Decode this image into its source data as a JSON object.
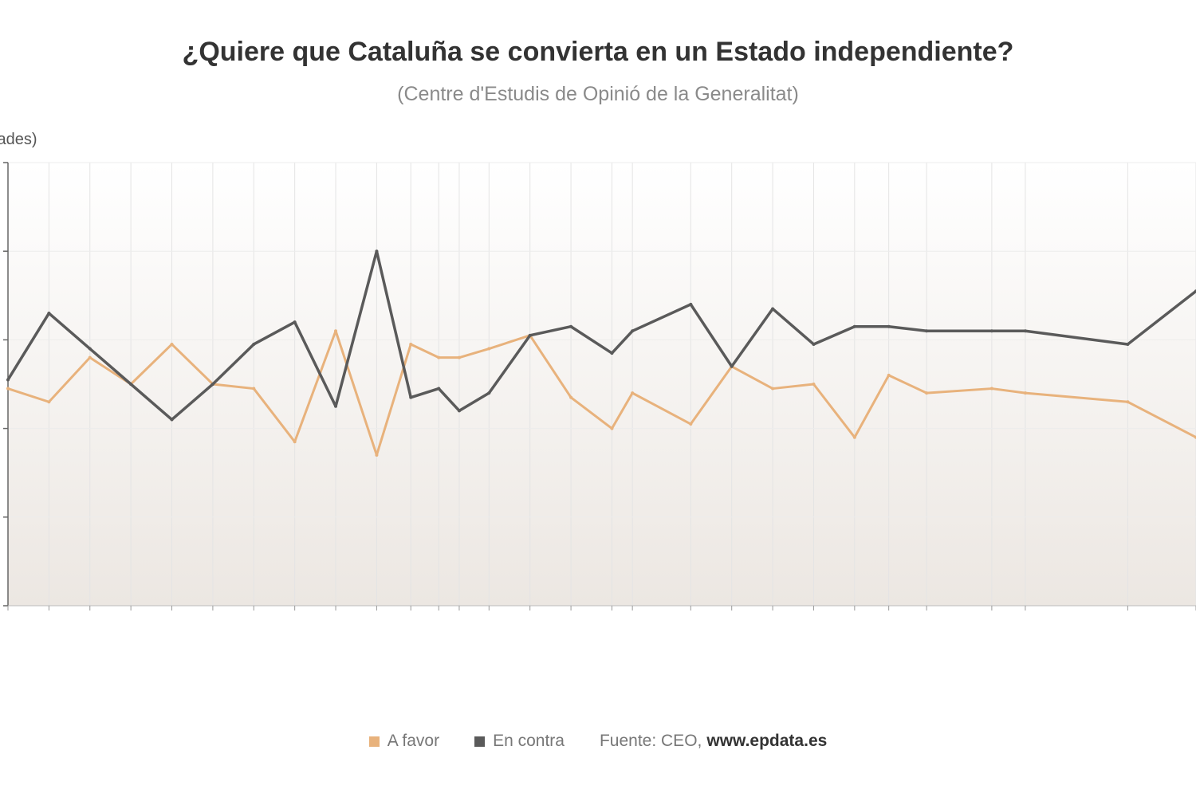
{
  "chart_data": {
    "type": "line",
    "title": "¿Quiere que Cataluña se convierta en un Estado independiente?",
    "subtitle": "(Centre d'Estudis de Opinió de la Generalitat)",
    "ylabel": "(unidades)",
    "xlabel": "",
    "ylim": [
      0,
      100
    ],
    "grid": true,
    "legend_position": "bottom",
    "source_label": "Fuente: CEO,",
    "source_site": "www.epdata.es",
    "x": [
      0,
      6.6,
      13.2,
      19.8,
      26.4,
      33.0,
      39.6,
      46.2,
      52.8,
      59.4,
      64.9,
      69.4,
      72.7,
      77.5,
      84.1,
      90.7,
      97.3,
      100.6,
      110.0,
      116.6,
      123.2,
      129.8,
      136.4,
      141.9,
      148.0,
      158.5,
      163.9,
      180.4,
      191.4
    ],
    "x_max": 191.4,
    "categories": [
      "",
      "",
      "",
      "",
      "",
      "",
      "",
      "",
      "",
      "",
      "",
      "",
      "",
      "",
      "",
      "",
      "",
      "",
      "",
      "",
      "",
      "",
      "",
      "",
      "",
      "",
      "",
      "",
      ""
    ],
    "series": [
      {
        "name": "A favor",
        "color": "#e8b27c",
        "values": [
          49,
          46,
          56,
          50,
          59,
          50,
          49,
          37,
          62,
          34,
          59,
          56,
          56,
          58,
          61,
          47,
          40,
          48,
          41,
          54,
          49,
          50,
          38,
          52,
          48,
          49,
          48,
          46,
          38
        ]
      },
      {
        "name": "En contra",
        "color": "#5a5a5a",
        "values": [
          51,
          66,
          58,
          50,
          42,
          50,
          59,
          64,
          45,
          80,
          47,
          49,
          44,
          48,
          61,
          63,
          57,
          62,
          68,
          54,
          67,
          59,
          63,
          63,
          62,
          62,
          62,
          59,
          71
        ]
      }
    ]
  }
}
